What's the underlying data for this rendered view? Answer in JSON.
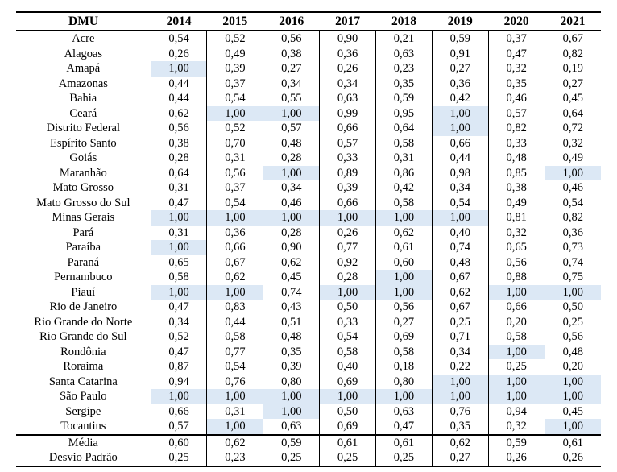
{
  "table": {
    "columns": {
      "dmu_header": "DMU",
      "year_headers": [
        "2014",
        "2015",
        "2016",
        "2017",
        "2018",
        "2019",
        "2020",
        "2021"
      ]
    },
    "rows": [
      {
        "dmu": "Acre",
        "values": [
          "0,54",
          "0,52",
          "0,56",
          "0,90",
          "0,21",
          "0,59",
          "0,37",
          "0,67"
        ]
      },
      {
        "dmu": "Alagoas",
        "values": [
          "0,26",
          "0,49",
          "0,38",
          "0,36",
          "0,63",
          "0,91",
          "0,47",
          "0,82"
        ]
      },
      {
        "dmu": "Amapá",
        "values": [
          "1,00",
          "0,39",
          "0,27",
          "0,26",
          "0,23",
          "0,27",
          "0,32",
          "0,19"
        ]
      },
      {
        "dmu": "Amazonas",
        "values": [
          "0,44",
          "0,37",
          "0,34",
          "0,34",
          "0,35",
          "0,36",
          "0,35",
          "0,27"
        ]
      },
      {
        "dmu": "Bahia",
        "values": [
          "0,44",
          "0,54",
          "0,55",
          "0,63",
          "0,59",
          "0,42",
          "0,46",
          "0,45"
        ]
      },
      {
        "dmu": "Ceará",
        "values": [
          "0,62",
          "1,00",
          "1,00",
          "0,99",
          "0,95",
          "1,00",
          "0,57",
          "0,64"
        ]
      },
      {
        "dmu": "Distrito Federal",
        "values": [
          "0,56",
          "0,52",
          "0,57",
          "0,66",
          "0,64",
          "1,00",
          "0,82",
          "0,72"
        ]
      },
      {
        "dmu": "Espírito Santo",
        "values": [
          "0,38",
          "0,70",
          "0,48",
          "0,57",
          "0,58",
          "0,66",
          "0,33",
          "0,32"
        ]
      },
      {
        "dmu": "Goiás",
        "values": [
          "0,28",
          "0,31",
          "0,28",
          "0,33",
          "0,31",
          "0,44",
          "0,48",
          "0,49"
        ]
      },
      {
        "dmu": "Maranhão",
        "values": [
          "0,64",
          "0,56",
          "1,00",
          "0,89",
          "0,86",
          "0,98",
          "0,85",
          "1,00"
        ]
      },
      {
        "dmu": "Mato Grosso",
        "values": [
          "0,31",
          "0,37",
          "0,34",
          "0,39",
          "0,42",
          "0,34",
          "0,38",
          "0,46"
        ]
      },
      {
        "dmu": "Mato Grosso do Sul",
        "values": [
          "0,47",
          "0,54",
          "0,46",
          "0,66",
          "0,58",
          "0,54",
          "0,49",
          "0,54"
        ]
      },
      {
        "dmu": "Minas Gerais",
        "values": [
          "1,00",
          "1,00",
          "1,00",
          "1,00",
          "1,00",
          "1,00",
          "0,81",
          "0,82"
        ]
      },
      {
        "dmu": "Pará",
        "values": [
          "0,31",
          "0,36",
          "0,28",
          "0,26",
          "0,62",
          "0,40",
          "0,32",
          "0,36"
        ]
      },
      {
        "dmu": "Paraíba",
        "values": [
          "1,00",
          "0,66",
          "0,90",
          "0,77",
          "0,61",
          "0,74",
          "0,65",
          "0,73"
        ]
      },
      {
        "dmu": "Paraná",
        "values": [
          "0,65",
          "0,67",
          "0,62",
          "0,92",
          "0,60",
          "0,48",
          "0,56",
          "0,74"
        ]
      },
      {
        "dmu": "Pernambuco",
        "values": [
          "0,58",
          "0,62",
          "0,45",
          "0,28",
          "1,00",
          "0,67",
          "0,88",
          "0,75"
        ]
      },
      {
        "dmu": "Piauí",
        "values": [
          "1,00",
          "1,00",
          "0,74",
          "1,00",
          "1,00",
          "0,62",
          "1,00",
          "1,00"
        ]
      },
      {
        "dmu": "Rio de Janeiro",
        "values": [
          "0,47",
          "0,83",
          "0,43",
          "0,50",
          "0,56",
          "0,67",
          "0,66",
          "0,50"
        ]
      },
      {
        "dmu": "Rio Grande do Norte",
        "values": [
          "0,34",
          "0,44",
          "0,51",
          "0,33",
          "0,27",
          "0,25",
          "0,20",
          "0,25"
        ]
      },
      {
        "dmu": "Rio Grande do Sul",
        "values": [
          "0,52",
          "0,58",
          "0,48",
          "0,54",
          "0,69",
          "0,71",
          "0,58",
          "0,56"
        ]
      },
      {
        "dmu": "Rondônia",
        "values": [
          "0,47",
          "0,77",
          "0,35",
          "0,58",
          "0,58",
          "0,34",
          "1,00",
          "0,48"
        ]
      },
      {
        "dmu": "Roraima",
        "values": [
          "0,87",
          "0,54",
          "0,39",
          "0,40",
          "0,18",
          "0,22",
          "0,25",
          "0,20"
        ]
      },
      {
        "dmu": "Santa Catarina",
        "values": [
          "0,94",
          "0,76",
          "0,80",
          "0,69",
          "0,80",
          "1,00",
          "1,00",
          "1,00"
        ]
      },
      {
        "dmu": "São Paulo",
        "values": [
          "1,00",
          "1,00",
          "1,00",
          "1,00",
          "1,00",
          "1,00",
          "1,00",
          "1,00"
        ]
      },
      {
        "dmu": "Sergipe",
        "values": [
          "0,66",
          "0,31",
          "1,00",
          "0,50",
          "0,63",
          "0,76",
          "0,94",
          "0,45"
        ]
      },
      {
        "dmu": "Tocantins",
        "values": [
          "0,57",
          "1,00",
          "0,63",
          "0,69",
          "0,47",
          "0,35",
          "0,32",
          "1,00"
        ]
      }
    ],
    "summary_rows": [
      {
        "dmu": "Média",
        "values": [
          "0,60",
          "0,62",
          "0,59",
          "0,61",
          "0,61",
          "0,62",
          "0,59",
          "0,61"
        ]
      },
      {
        "dmu": "Desvio Padrão",
        "values": [
          "0,25",
          "0,23",
          "0,25",
          "0,25",
          "0,25",
          "0,27",
          "0,26",
          "0,26"
        ]
      }
    ],
    "highlight_value": "1,00",
    "highlight_color": "#dce8f5",
    "border_color": "#000000"
  }
}
